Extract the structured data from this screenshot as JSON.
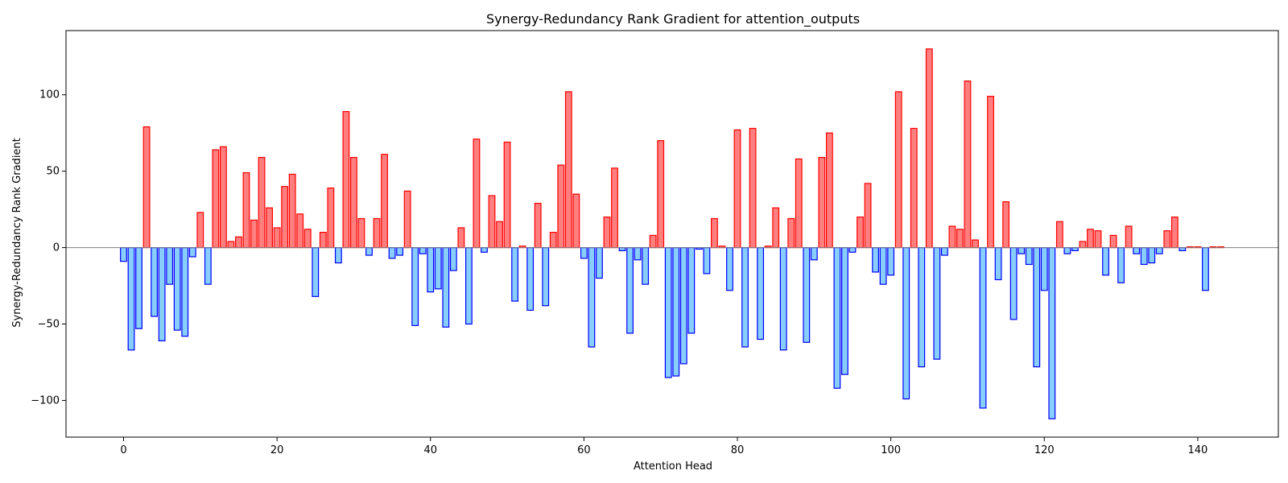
{
  "chart_data": {
    "type": "bar",
    "title": "Synergy-Redundancy Rank Gradient for attention_outputs",
    "xlabel": "Attention Head",
    "ylabel": "Synergy-Redundancy Rank Gradient",
    "xlim": [
      -7.5,
      150.5
    ],
    "ylim": [
      -124,
      142
    ],
    "x_ticks": [
      0,
      20,
      40,
      60,
      80,
      100,
      120,
      140
    ],
    "y_ticks": [
      -100,
      -50,
      0,
      50,
      100
    ],
    "grid": false,
    "zero_line": true,
    "positive_fill": "#ff7f7f",
    "positive_edge": "#ff0000",
    "negative_fill": "#87cefa",
    "negative_edge": "#0000ff",
    "x": [
      0,
      1,
      2,
      3,
      4,
      5,
      6,
      7,
      8,
      9,
      10,
      11,
      12,
      13,
      14,
      15,
      16,
      17,
      18,
      19,
      20,
      21,
      22,
      23,
      24,
      25,
      26,
      27,
      28,
      29,
      30,
      31,
      32,
      33,
      34,
      35,
      36,
      37,
      38,
      39,
      40,
      41,
      42,
      43,
      44,
      45,
      46,
      47,
      48,
      49,
      50,
      51,
      52,
      53,
      54,
      55,
      56,
      57,
      58,
      59,
      60,
      61,
      62,
      63,
      64,
      65,
      66,
      67,
      68,
      69,
      70,
      71,
      72,
      73,
      74,
      75,
      76,
      77,
      78,
      79,
      80,
      81,
      82,
      83,
      84,
      85,
      86,
      87,
      88,
      89,
      90,
      91,
      92,
      93,
      94,
      95,
      96,
      97,
      98,
      99,
      100,
      101,
      102,
      103,
      104,
      105,
      106,
      107,
      108,
      109,
      110,
      111,
      112,
      113,
      114,
      115,
      116,
      117,
      118,
      119,
      120,
      121,
      122,
      123,
      124,
      125,
      126,
      127,
      128,
      129,
      130,
      131,
      132,
      133,
      134,
      135,
      136,
      137,
      138,
      139,
      140,
      141,
      142,
      143
    ],
    "values": [
      -9,
      -67,
      -53,
      79,
      -45,
      -61,
      -24,
      -54,
      -58,
      -6,
      23,
      -24,
      64,
      66,
      4,
      7,
      49,
      18,
      59,
      26,
      13,
      40,
      48,
      22,
      12,
      -32,
      10,
      39,
      -10,
      89,
      59,
      19,
      -5,
      19,
      61,
      -7,
      -5,
      37,
      -51,
      -4,
      -29,
      -27,
      -52,
      -15,
      13,
      -50,
      71,
      -3,
      34,
      17,
      69,
      -35,
      1,
      -41,
      29,
      -38,
      10,
      54,
      102,
      35,
      -7,
      -65,
      -20,
      20,
      52,
      -2,
      -56,
      -8,
      -24,
      8,
      70,
      -85,
      -84,
      -76,
      -56,
      -1,
      -17,
      19,
      1,
      -28,
      77,
      -65,
      78,
      -60,
      1,
      26,
      -67,
      19,
      58,
      -62,
      -8,
      59,
      75,
      -92,
      -83,
      -3,
      20,
      42,
      -16,
      -24,
      -18,
      102,
      -99,
      78,
      -78,
      130,
      -73,
      -5,
      14,
      12,
      109,
      5,
      -105,
      99,
      -21,
      30,
      -47,
      -4,
      -11,
      -78,
      -28,
      -112,
      17,
      -4,
      -2,
      4,
      12,
      11,
      -18,
      8,
      -23,
      14,
      -4,
      -11,
      -10,
      -4,
      11,
      20,
      -2,
      0.5,
      0.5,
      -28,
      0.5,
      0.5
    ]
  }
}
